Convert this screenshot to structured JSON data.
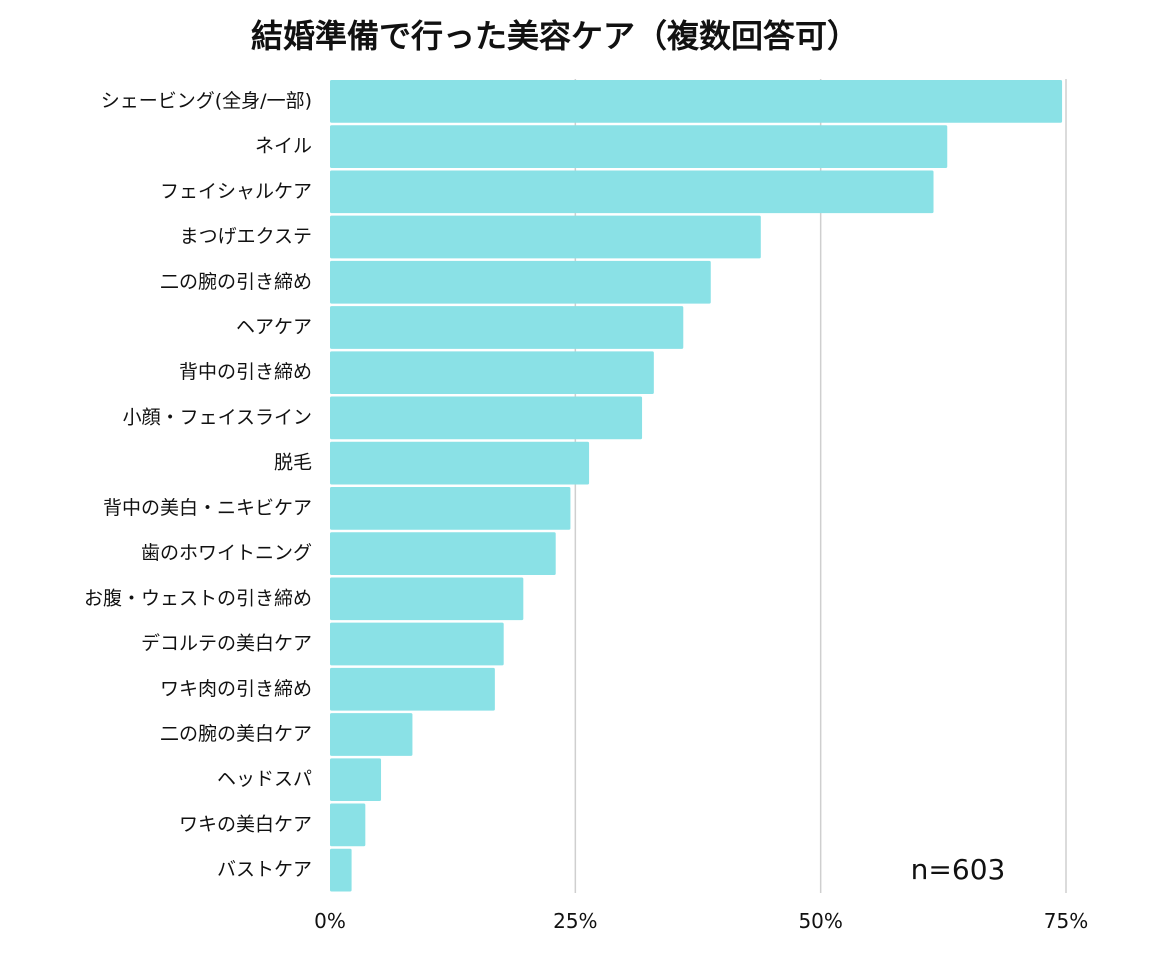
{
  "chart_data": {
    "type": "bar",
    "orientation": "horizontal",
    "title": "結婚準備で行った美容ケア（複数回答可）",
    "sample_note": "n=603",
    "xlabel": "",
    "ylabel": "",
    "xlim": [
      0,
      75
    ],
    "x_ticks": [
      0,
      25,
      50,
      75
    ],
    "x_tick_labels": [
      "0%",
      "25%",
      "50%",
      "75%"
    ],
    "grid": true,
    "categories": [
      "シェービング(全身/一部)",
      "ネイル",
      "フェイシャルケア",
      "まつげエクステ",
      "二の腕の引き締め",
      "ヘアケア",
      "背中の引き締め",
      "小顔・フェイスライン",
      "脱毛",
      "背中の美白・ニキビケア",
      "歯のホワイトニング",
      "お腹・ウェストの引き締め",
      "デコルテの美白ケア",
      "ワキ肉の引き締め",
      "二の腕の美白ケア",
      "ヘッドスパ",
      "ワキの美白ケア",
      "バストケア"
    ],
    "values": [
      74.6,
      62.9,
      61.5,
      43.9,
      38.8,
      36.0,
      33.0,
      31.8,
      26.4,
      24.5,
      23.0,
      19.7,
      17.7,
      16.8,
      8.4,
      5.2,
      3.6,
      2.2
    ],
    "bar_color": "#8ae1e6"
  }
}
